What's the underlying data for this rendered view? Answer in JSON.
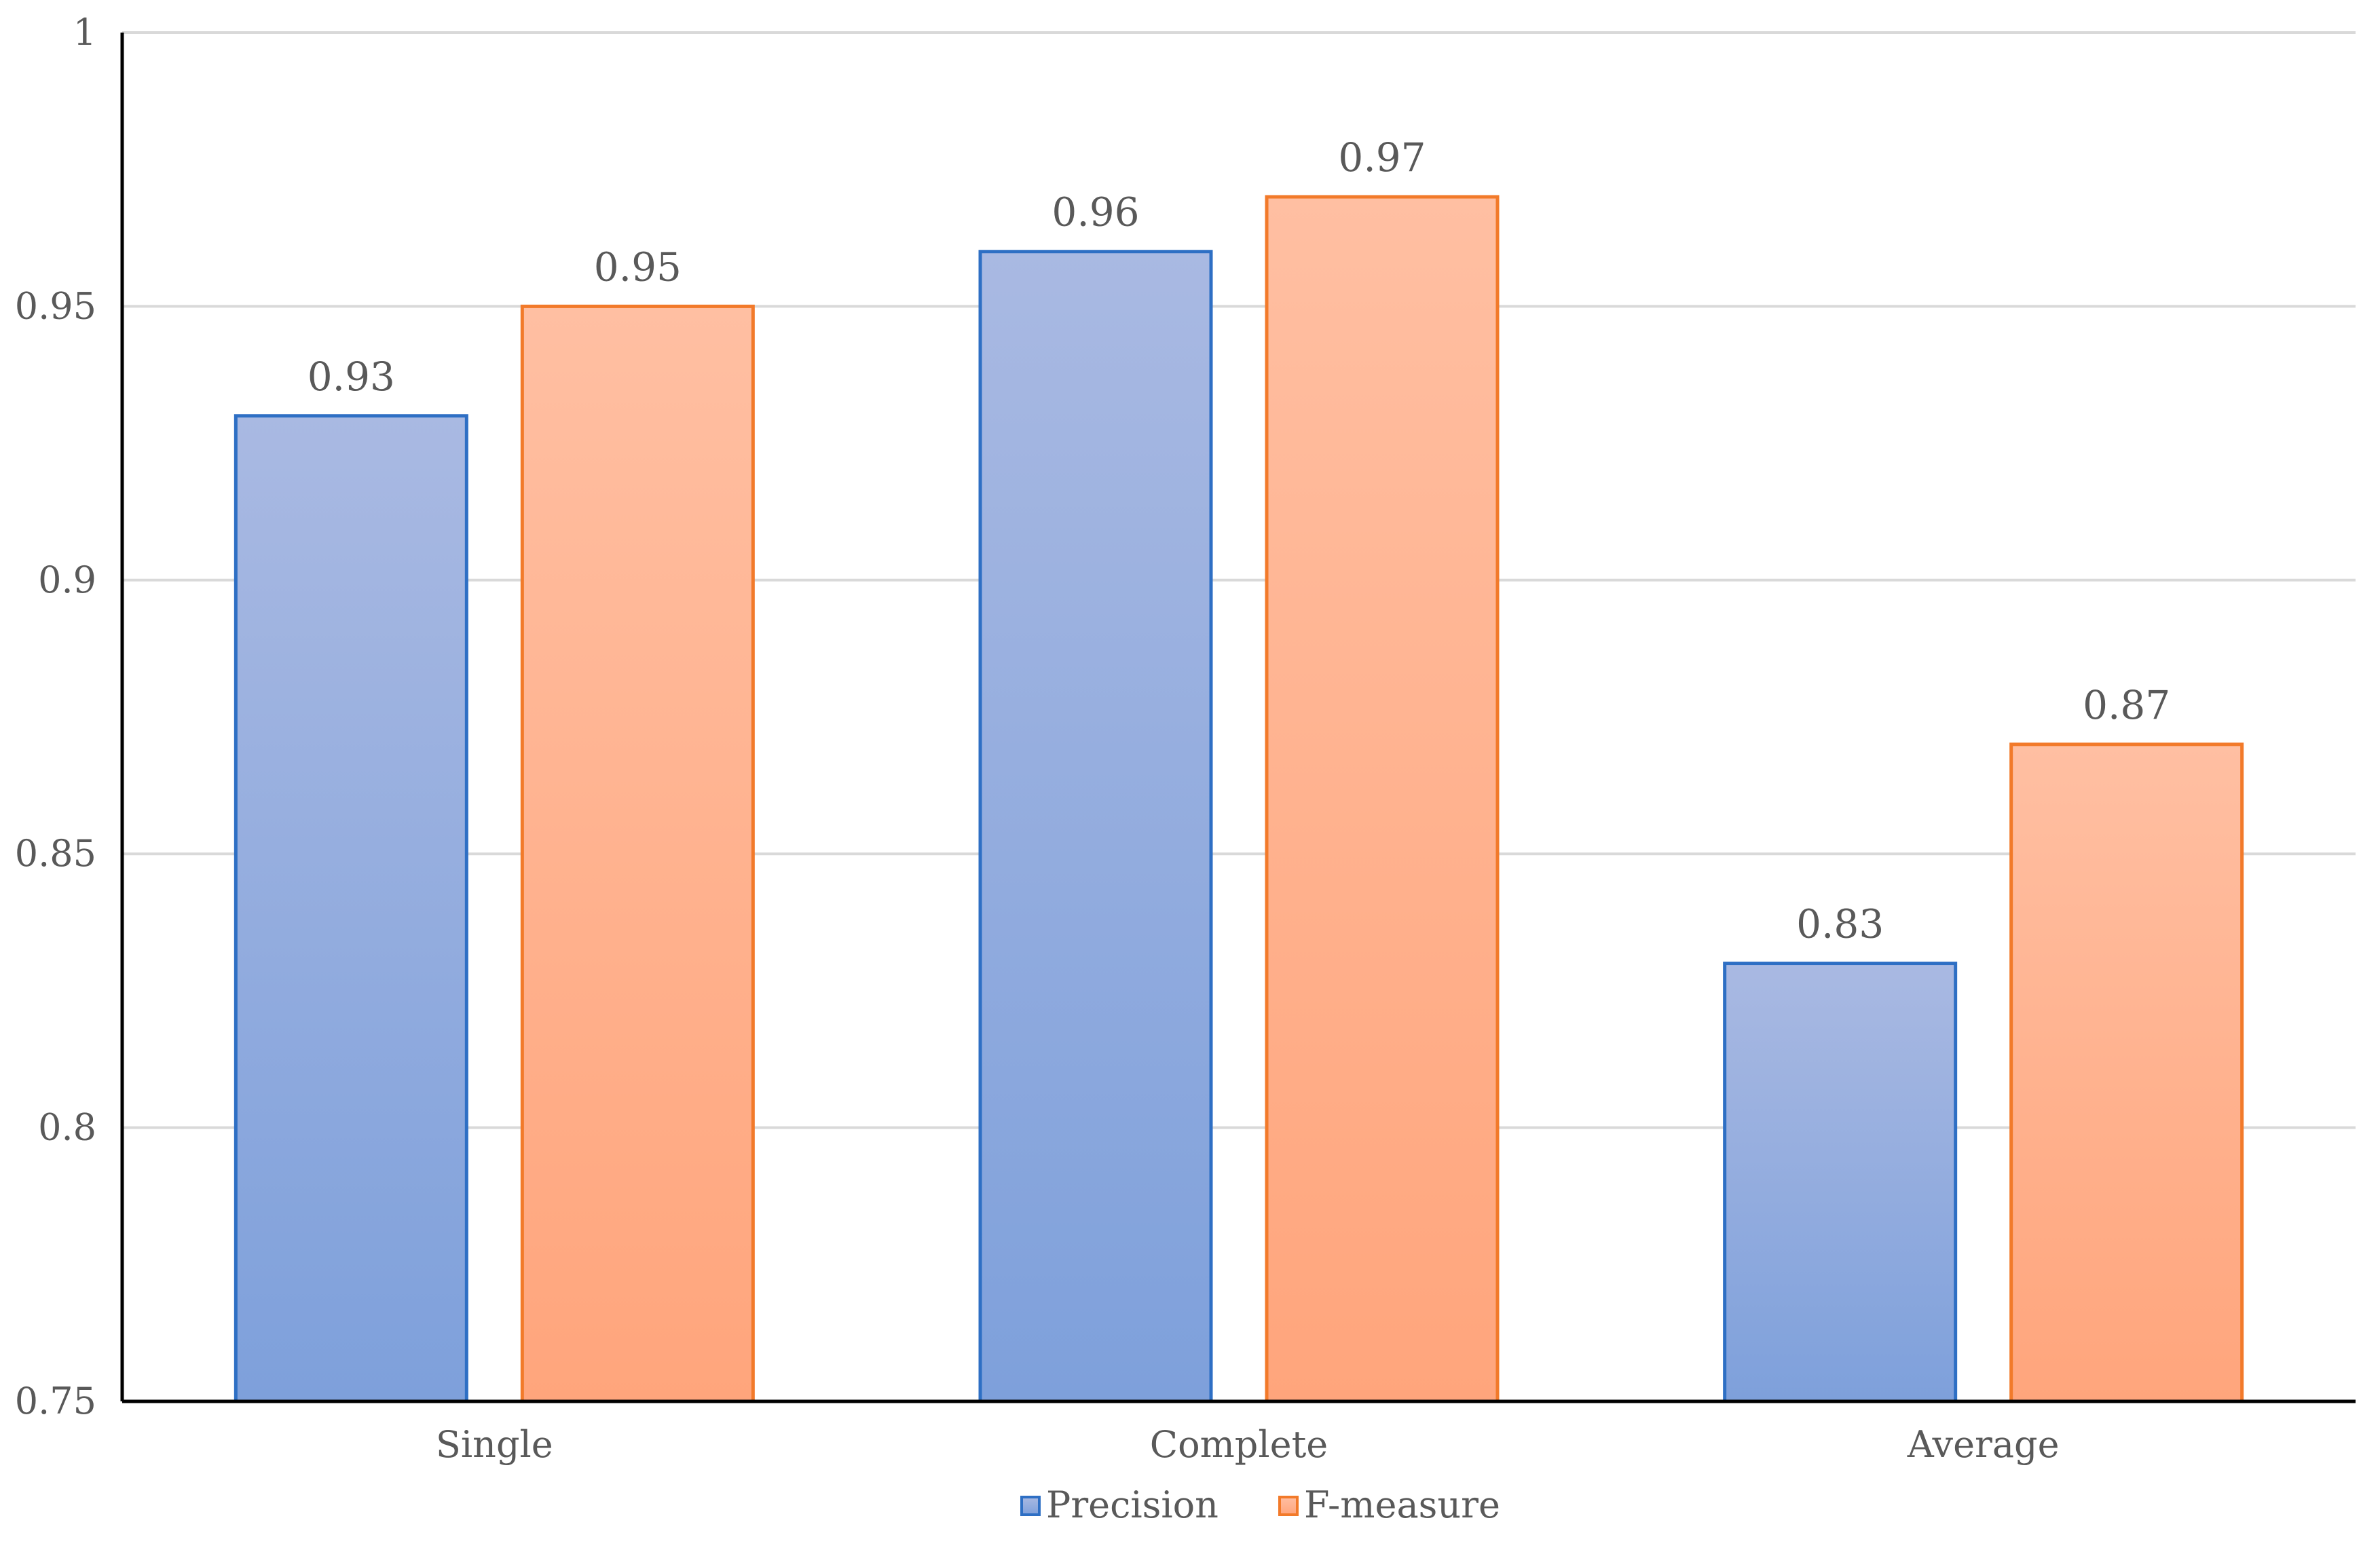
{
  "chart_data": {
    "type": "bar",
    "categories": [
      "Single",
      "Complete",
      "Average"
    ],
    "series": [
      {
        "name": "Precision",
        "values": [
          0.93,
          0.96,
          0.83
        ],
        "color": "#2E6FC4",
        "fill_top": "#A9B9E2",
        "fill_bottom": "#7EA0DB"
      },
      {
        "name": "F-measure",
        "values": [
          0.95,
          0.97,
          0.87
        ],
        "color": "#F27A2A",
        "fill_top": "#FFBFA2",
        "fill_bottom": "#FFA57C"
      }
    ],
    "y_ticks": [
      "0.75",
      "0.8",
      "0.85",
      "0.9",
      "0.95",
      "1"
    ],
    "ylim": [
      0.75,
      1
    ],
    "grid": true,
    "legend_position": "bottom",
    "title": "",
    "xlabel": "",
    "ylabel": ""
  }
}
